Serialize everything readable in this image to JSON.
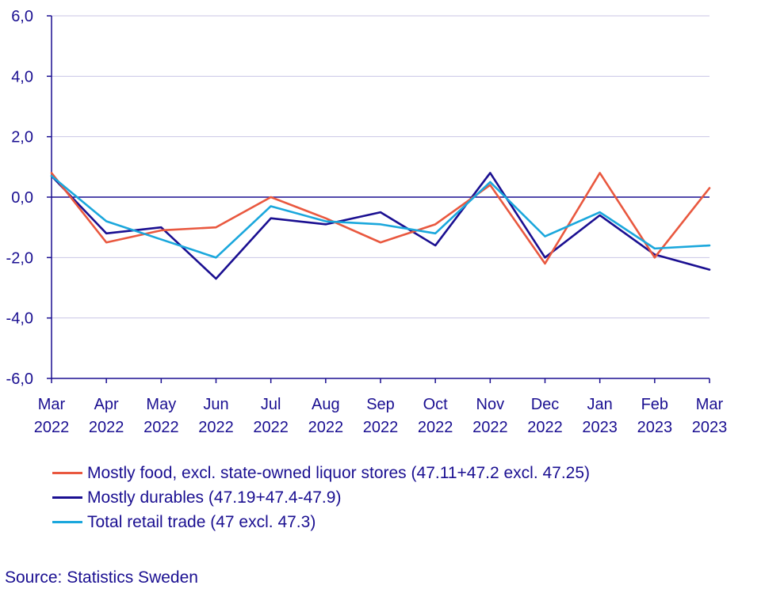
{
  "chart_data": {
    "type": "line",
    "categories": [
      "Mar 2022",
      "Apr 2022",
      "May 2022",
      "Jun 2022",
      "Jul 2022",
      "Aug 2022",
      "Sep 2022",
      "Oct 2022",
      "Nov 2022",
      "Dec 2022",
      "Jan 2023",
      "Feb 2023",
      "Mar 2023"
    ],
    "x_tick_lines": [
      [
        "Mar",
        "2022"
      ],
      [
        "Apr",
        "2022"
      ],
      [
        "May",
        "2022"
      ],
      [
        "Jun",
        "2022"
      ],
      [
        "Jul",
        "2022"
      ],
      [
        "Aug",
        "2022"
      ],
      [
        "Sep",
        "2022"
      ],
      [
        "Oct",
        "2022"
      ],
      [
        "Nov",
        "2022"
      ],
      [
        "Dec",
        "2022"
      ],
      [
        "Jan",
        "2023"
      ],
      [
        "Feb",
        "2023"
      ],
      [
        "Mar",
        "2023"
      ]
    ],
    "y_ticks": [
      6,
      4,
      2,
      0,
      -2,
      -4,
      -6
    ],
    "y_tick_labels": [
      "6,0",
      "4,0",
      "2,0",
      "0,0",
      "-2,0",
      "-4,0",
      "-6,0"
    ],
    "ylim": [
      -6,
      6
    ],
    "grid": true,
    "legend_position": "bottom",
    "series": [
      {
        "name": "Mostly food, excl. state-owned liquor stores (47.11+47.2 excl. 47.25)",
        "color": "#e9583f",
        "values": [
          0.8,
          -1.5,
          -1.1,
          -1.0,
          0.0,
          -0.7,
          -1.5,
          -0.9,
          0.4,
          -2.2,
          0.8,
          -2.0,
          0.3
        ]
      },
      {
        "name": "Mostly durables (47.19+47.4-47.9)",
        "color": "#1a0f91",
        "values": [
          0.7,
          -1.2,
          -1.0,
          -2.7,
          -0.7,
          -0.9,
          -0.5,
          -1.6,
          0.8,
          -2.0,
          -0.6,
          -1.9,
          -2.4
        ]
      },
      {
        "name": "Total retail trade (47 excl. 47.3)",
        "color": "#1aa7dc",
        "values": [
          0.7,
          -0.8,
          -1.4,
          -2.0,
          -0.3,
          -0.8,
          -0.9,
          -1.2,
          0.5,
          -1.3,
          -0.5,
          -1.7,
          -1.6
        ]
      }
    ],
    "axis_color": "#1a0f91",
    "grid_color": "#c9c6e6"
  },
  "source": "Source: Statistics Sweden"
}
